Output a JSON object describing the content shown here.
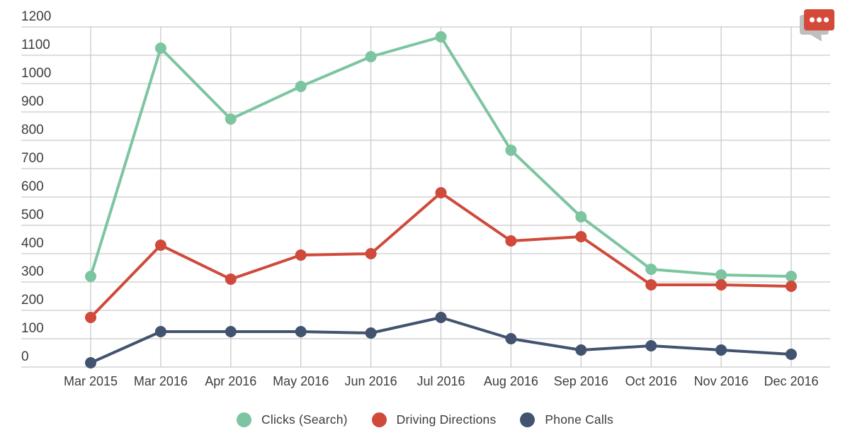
{
  "header": {
    "icon": {
      "name": "chat-bubble-icon",
      "front_color": "#d5493a",
      "back_color": "#bfbfbf",
      "dot_color": "#ffffff",
      "dots": 3
    }
  },
  "styles": {
    "background": "#ffffff",
    "grid_color": "#c9c9c9",
    "axis_label_color": "#3d3d3d"
  },
  "chart_data": {
    "type": "line",
    "title": "",
    "xlabel": "",
    "ylabel": "",
    "grid": true,
    "legend_position": "bottom",
    "ylim": [
      0,
      1200
    ],
    "ytick_step": 100,
    "categories": [
      "Mar 2015",
      "Mar 2016",
      "Apr 2016",
      "May 2016",
      "Jun 2016",
      "Jul 2016",
      "Aug 2016",
      "Sep 2016",
      "Oct 2016",
      "Nov 2016",
      "Dec 2016"
    ],
    "series": [
      {
        "name": "Clicks (Search)",
        "color": "#7cc5a0",
        "values": [
          320,
          1125,
          875,
          990,
          1095,
          1165,
          765,
          530,
          345,
          325,
          320
        ]
      },
      {
        "name": "Driving Directions",
        "color": "#cf4a3a",
        "values": [
          175,
          430,
          310,
          395,
          400,
          615,
          445,
          460,
          290,
          290,
          285
        ]
      },
      {
        "name": "Phone Calls",
        "color": "#42536f",
        "values": [
          15,
          125,
          125,
          125,
          120,
          175,
          100,
          60,
          75,
          60,
          45
        ]
      }
    ]
  }
}
